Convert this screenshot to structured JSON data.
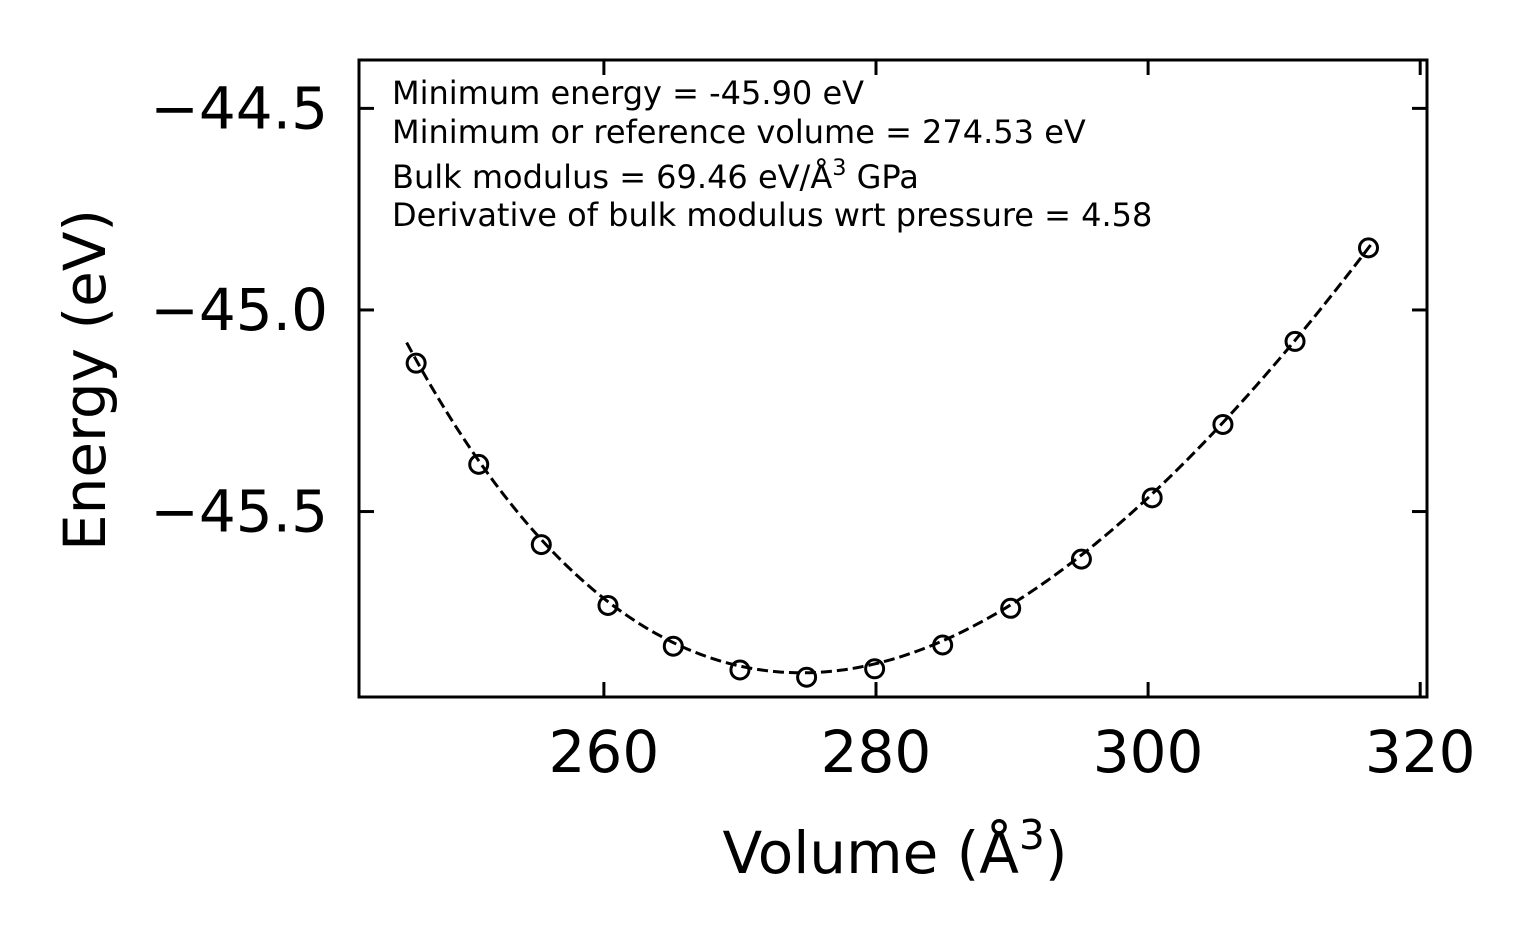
{
  "chart_data": {
    "type": "scatter",
    "xlabel": "Volume (Å",
    "xlabel_sup": "3",
    "xlabel_close": ")",
    "ylabel": "Energy (eV)",
    "xlim": [
      242.0,
      320.5
    ],
    "ylim": [
      -45.96,
      -44.38
    ],
    "xticks": [
      260,
      280,
      300,
      320
    ],
    "yticks": [
      -44.5,
      -45.0,
      -45.5
    ],
    "xtick_labels": [
      "260",
      "280",
      "300",
      "320"
    ],
    "ytick_labels": [
      "−44.5",
      "−45.0",
      "−45.5"
    ],
    "grid": false,
    "annotations": [
      {
        "text": "Minimum energy = -45.90 eV"
      },
      {
        "text": "Minimum or reference volume = 274.53 eV"
      },
      {
        "text": "Bulk modulus = 69.46 eV/Å",
        "sup": "3",
        "suffix": " GPa"
      },
      {
        "text": "Derivative of bulk modulus wrt pressure = 4.58"
      }
    ],
    "series": [
      {
        "style": "markers",
        "marker": "open-circle",
        "color": "#000000",
        "x": [
          246.2,
          250.8,
          255.4,
          260.3,
          265.1,
          270.0,
          274.9,
          279.9,
          284.9,
          289.9,
          295.1,
          300.3,
          305.5,
          310.8,
          316.2
        ],
        "y": [
          -45.132,
          -45.383,
          -45.582,
          -45.733,
          -45.834,
          -45.893,
          -45.911,
          -45.89,
          -45.831,
          -45.74,
          -45.618,
          -45.466,
          -45.284,
          -45.078,
          -44.846
        ]
      },
      {
        "style": "dashed-line",
        "color": "#000000",
        "fit": "birch-murnaghan",
        "E0": -45.9,
        "V0": 274.53,
        "B0": 69.46,
        "B0_prime": 4.58,
        "x_range": [
          245.5,
          316.5
        ]
      }
    ]
  }
}
